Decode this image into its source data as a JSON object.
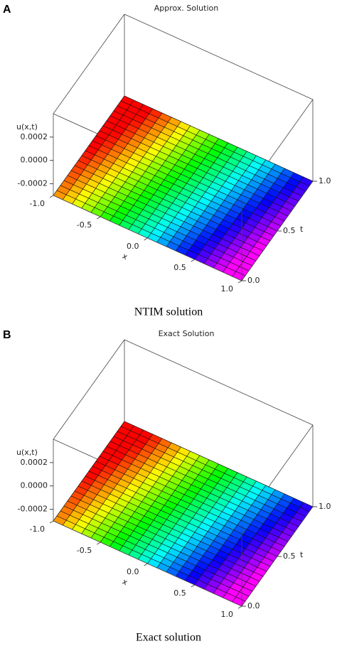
{
  "chart_data": [
    {
      "type": "surface",
      "panel_label": "A",
      "title": "Approx. Solution",
      "zlabel": "u(x,t)",
      "xlabel": "x",
      "tlabel": "t",
      "xlim": [
        -1,
        1
      ],
      "tlim": [
        0,
        1
      ],
      "zlim": [
        -0.0003,
        0.0004
      ],
      "xticks": [
        {
          "value": -1,
          "label": "-1.0"
        },
        -0.5,
        {
          "value": 0,
          "label": "0.0"
        },
        0.5,
        {
          "value": 1,
          "label": "1.0"
        }
      ],
      "tticks": [
        {
          "value": 0,
          "label": "0.0"
        },
        0.5,
        {
          "value": 1,
          "label": "1.0"
        }
      ],
      "zticks": [
        0.0002,
        {
          "value": 0,
          "label": "0.0000"
        },
        -0.0002
      ],
      "caption": "NTIM solution"
    },
    {
      "type": "surface",
      "panel_label": "B",
      "title": "Exact Solution",
      "zlabel": "u(x,t)",
      "xlabel": "x",
      "tlabel": "t",
      "xlim": [
        -1,
        1
      ],
      "tlim": [
        0,
        1
      ],
      "zlim": [
        -0.0003,
        0.0004
      ],
      "xticks": [
        {
          "value": -1,
          "label": "-1.0"
        },
        -0.5,
        {
          "value": 0,
          "label": "0.0"
        },
        0.5,
        {
          "value": 1,
          "label": "1.0"
        }
      ],
      "tticks": [
        {
          "value": 0,
          "label": "0.0"
        },
        0.5,
        {
          "value": 1,
          "label": "1.0"
        }
      ],
      "zticks": [
        0.0002,
        {
          "value": 0,
          "label": "0.0000"
        },
        -0.0002
      ],
      "caption": "Exact solution"
    }
  ]
}
